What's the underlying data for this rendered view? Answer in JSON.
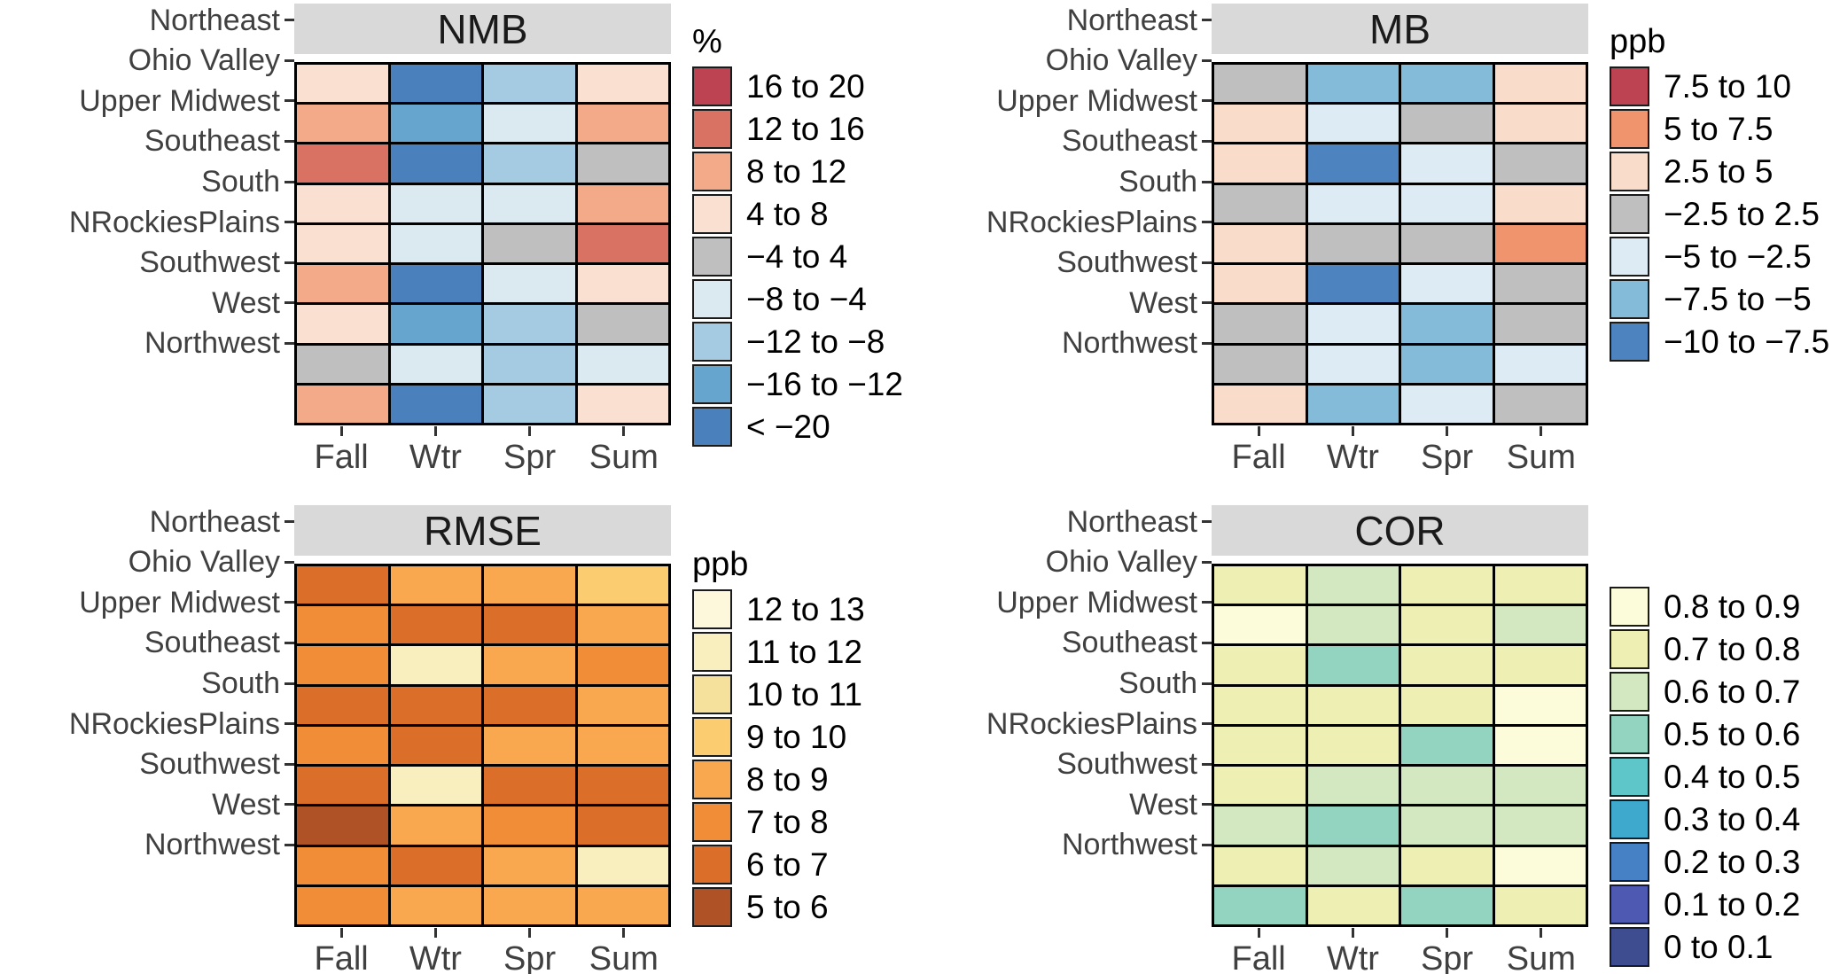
{
  "figure": {
    "background": "#ffffff",
    "strip_background": "#d9d9d9",
    "axis_text_color": "#404040",
    "legend_text_color": "#000000",
    "cell_border_color": "#000000"
  },
  "chart_data": [
    {
      "type": "heatmap",
      "title": "NMB",
      "legend_title": "%",
      "legend_position": "right",
      "columns": [
        "Fall",
        "Wtr",
        "Spr",
        "Sum"
      ],
      "rows": [
        "Northeast",
        "Ohio Valley",
        "Upper Midwest",
        "Southeast",
        "South",
        "NRockiesPlains",
        "Southwest",
        "West",
        "Northwest"
      ],
      "bins": [
        {
          "label": "16 to 20",
          "color": "#bd4352"
        },
        {
          "label": "12 to 16",
          "color": "#da7264"
        },
        {
          "label": "8 to 12",
          "color": "#f2aa89"
        },
        {
          "label": "4 to 8",
          "color": "#fae0d1"
        },
        {
          "label": "−4 to 4",
          "color": "#bfbfbf"
        },
        {
          "label": "−8 to −4",
          "color": "#dbe9f1"
        },
        {
          "label": "−12 to −8",
          "color": "#a4cbe2"
        },
        {
          "label": "−16 to −12",
          "color": "#66a5cd"
        },
        {
          "label": "< −20",
          "color": "#4a81bd"
        }
      ],
      "values": [
        [
          "4 to 8",
          "< −20",
          "−12 to −8",
          "4 to 8"
        ],
        [
          "8 to 12",
          "−16 to −12",
          "−8 to −4",
          "8 to 12"
        ],
        [
          "12 to 16",
          "< −20",
          "−12 to −8",
          "−4 to 4"
        ],
        [
          "4 to 8",
          "−8 to −4",
          "−8 to −4",
          "8 to 12"
        ],
        [
          "4 to 8",
          "−8 to −4",
          "−4 to 4",
          "12 to 16"
        ],
        [
          "8 to 12",
          "< −20",
          "−8 to −4",
          "4 to 8"
        ],
        [
          "4 to 8",
          "−16 to −12",
          "−12 to −8",
          "−4 to 4"
        ],
        [
          "−4 to 4",
          "−8 to −4",
          "−12 to −8",
          "−8 to −4"
        ],
        [
          "8 to 12",
          "< −20",
          "−12 to −8",
          "4 to 8"
        ]
      ]
    },
    {
      "type": "heatmap",
      "title": "MB",
      "legend_title": "ppb",
      "legend_position": "right",
      "columns": [
        "Fall",
        "Wtr",
        "Spr",
        "Sum"
      ],
      "rows": [
        "Northeast",
        "Ohio Valley",
        "Upper Midwest",
        "Southeast",
        "South",
        "NRockiesPlains",
        "Southwest",
        "West",
        "Northwest"
      ],
      "bins": [
        {
          "label": "7.5 to 10",
          "color": "#bd4352"
        },
        {
          "label": "5 to 7.5",
          "color": "#f0946e"
        },
        {
          "label": "2.5 to 5",
          "color": "#f9dcc9"
        },
        {
          "label": "−2.5 to 2.5",
          "color": "#bfbfbf"
        },
        {
          "label": "−5 to −2.5",
          "color": "#dcebf4"
        },
        {
          "label": "−7.5 to −5",
          "color": "#83bbd8"
        },
        {
          "label": "−10 to −7.5",
          "color": "#4d84c0"
        }
      ],
      "values": [
        [
          "−2.5 to 2.5",
          "−7.5 to −5",
          "−7.5 to −5",
          "2.5 to 5"
        ],
        [
          "2.5 to 5",
          "−5 to −2.5",
          "−2.5 to 2.5",
          "2.5 to 5"
        ],
        [
          "2.5 to 5",
          "−10 to −7.5",
          "−5 to −2.5",
          "−2.5 to 2.5"
        ],
        [
          "−2.5 to 2.5",
          "−5 to −2.5",
          "−5 to −2.5",
          "2.5 to 5"
        ],
        [
          "2.5 to 5",
          "−2.5 to 2.5",
          "−2.5 to 2.5",
          "5 to 7.5"
        ],
        [
          "2.5 to 5",
          "−10 to −7.5",
          "−5 to −2.5",
          "−2.5 to 2.5"
        ],
        [
          "−2.5 to 2.5",
          "−5 to −2.5",
          "−7.5 to −5",
          "−2.5 to 2.5"
        ],
        [
          "−2.5 to 2.5",
          "−5 to −2.5",
          "−7.5 to −5",
          "−5 to −2.5"
        ],
        [
          "2.5 to 5",
          "−7.5 to −5",
          "−5 to −2.5",
          "−2.5 to 2.5"
        ]
      ]
    },
    {
      "type": "heatmap",
      "title": "RMSE",
      "legend_title": "ppb",
      "legend_position": "right",
      "columns": [
        "Fall",
        "Wtr",
        "Spr",
        "Sum"
      ],
      "rows": [
        "Northeast",
        "Ohio Valley",
        "Upper Midwest",
        "Southeast",
        "South",
        "NRockiesPlains",
        "Southwest",
        "West",
        "Northwest"
      ],
      "bins": [
        {
          "label": "12 to 13",
          "color": "#fdf8dc"
        },
        {
          "label": "11 to 12",
          "color": "#f9efbe"
        },
        {
          "label": "10 to 11",
          "color": "#f5e19c"
        },
        {
          "label": "9 to 10",
          "color": "#fbcd70"
        },
        {
          "label": "8 to 9",
          "color": "#faa850"
        },
        {
          "label": "7 to 8",
          "color": "#f08d36"
        },
        {
          "label": "6 to 7",
          "color": "#db6e28"
        },
        {
          "label": "5 to 6",
          "color": "#af5327"
        }
      ],
      "values": [
        [
          "6 to 7",
          "8 to 9",
          "8 to 9",
          "9 to 10"
        ],
        [
          "7 to 8",
          "6 to 7",
          "6 to 7",
          "8 to 9"
        ],
        [
          "7 to 8",
          "11 to 12",
          "8 to 9",
          "7 to 8"
        ],
        [
          "6 to 7",
          "6 to 7",
          "6 to 7",
          "8 to 9"
        ],
        [
          "7 to 8",
          "6 to 7",
          "8 to 9",
          "8 to 9"
        ],
        [
          "6 to 7",
          "11 to 12",
          "6 to 7",
          "6 to 7"
        ],
        [
          "5 to 6",
          "8 to 9",
          "7 to 8",
          "6 to 7"
        ],
        [
          "7 to 8",
          "6 to 7",
          "8 to 9",
          "11 to 12"
        ],
        [
          "7 to 8",
          "8 to 9",
          "8 to 9",
          "8 to 9"
        ]
      ]
    },
    {
      "type": "heatmap",
      "title": "COR",
      "legend_title": "",
      "legend_position": "right",
      "columns": [
        "Fall",
        "Wtr",
        "Spr",
        "Sum"
      ],
      "rows": [
        "Northeast",
        "Ohio Valley",
        "Upper Midwest",
        "Southeast",
        "South",
        "NRockiesPlains",
        "Southwest",
        "West",
        "Northwest"
      ],
      "bins": [
        {
          "label": "0.8 to 0.9",
          "color": "#fcfcda"
        },
        {
          "label": "0.7 to 0.8",
          "color": "#edf0b2"
        },
        {
          "label": "0.6 to 0.7",
          "color": "#d3e8c0"
        },
        {
          "label": "0.5 to 0.6",
          "color": "#93d4c1"
        },
        {
          "label": "0.4 to 0.5",
          "color": "#5ec5c9"
        },
        {
          "label": "0.3 to 0.4",
          "color": "#3fa9cd"
        },
        {
          "label": "0.2 to 0.3",
          "color": "#4581c4"
        },
        {
          "label": "0.1 to 0.2",
          "color": "#4e59b2"
        },
        {
          "label": "0 to 0.1",
          "color": "#3d4d90"
        }
      ],
      "values": [
        [
          "0.7 to 0.8",
          "0.6 to 0.7",
          "0.7 to 0.8",
          "0.7 to 0.8"
        ],
        [
          "0.8 to 0.9",
          "0.6 to 0.7",
          "0.7 to 0.8",
          "0.6 to 0.7"
        ],
        [
          "0.7 to 0.8",
          "0.5 to 0.6",
          "0.7 to 0.8",
          "0.7 to 0.8"
        ],
        [
          "0.7 to 0.8",
          "0.7 to 0.8",
          "0.7 to 0.8",
          "0.8 to 0.9"
        ],
        [
          "0.7 to 0.8",
          "0.7 to 0.8",
          "0.5 to 0.6",
          "0.8 to 0.9"
        ],
        [
          "0.7 to 0.8",
          "0.6 to 0.7",
          "0.6 to 0.7",
          "0.6 to 0.7"
        ],
        [
          "0.6 to 0.7",
          "0.5 to 0.6",
          "0.6 to 0.7",
          "0.6 to 0.7"
        ],
        [
          "0.7 to 0.8",
          "0.6 to 0.7",
          "0.7 to 0.8",
          "0.8 to 0.9"
        ],
        [
          "0.5 to 0.6",
          "0.7 to 0.8",
          "0.5 to 0.6",
          "0.7 to 0.8"
        ]
      ]
    }
  ]
}
